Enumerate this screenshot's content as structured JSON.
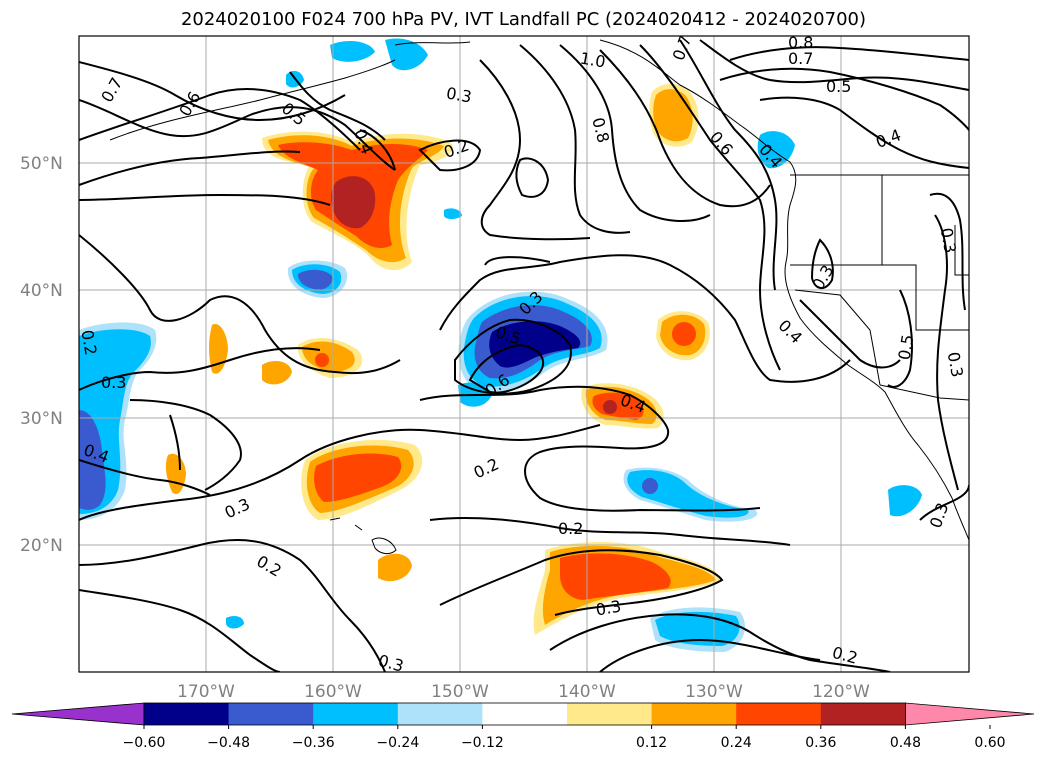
{
  "title": "2024020100 F024 700 hPa PV, IVT Landfall PC (2024020412 - 2024020700)",
  "lat_labels": [
    "50°N",
    "40°N",
    "30°N",
    "20°N"
  ],
  "lon_labels": [
    "170°W",
    "160°W",
    "150°W",
    "140°W",
    "130°W",
    "120°W"
  ],
  "colorbar": {
    "colors": [
      "#9932cc",
      "#00008b",
      "#3a5bd0",
      "#00bfff",
      "#aee2fa",
      "#ffffff",
      "#ffe98a",
      "#ffa500",
      "#ff4500",
      "#b22222",
      "#ff88aa"
    ],
    "ticks": [
      "−0.60",
      "−0.48",
      "−0.36",
      "−0.24",
      "−0.12",
      "0.12",
      "0.24",
      "0.36",
      "0.48",
      "0.60"
    ]
  },
  "contour_labels": [
    "0.7",
    "0.6",
    "0.5",
    "0.4",
    "0.3",
    "0.2",
    "1.0",
    "0.7",
    "0.8",
    "0.7",
    "0.5",
    "0.8",
    "0.6",
    "0.4",
    "0.4",
    "0.3",
    "0.3",
    "0.4",
    "0.5",
    "0.3",
    "0.5",
    "0.6",
    "0.3",
    "0.2",
    "0.3",
    "0.4",
    "0.4",
    "0.2",
    "0.3",
    "0.2",
    "0.2",
    "0.3",
    "0.3",
    "0.2",
    "0.3"
  ]
}
